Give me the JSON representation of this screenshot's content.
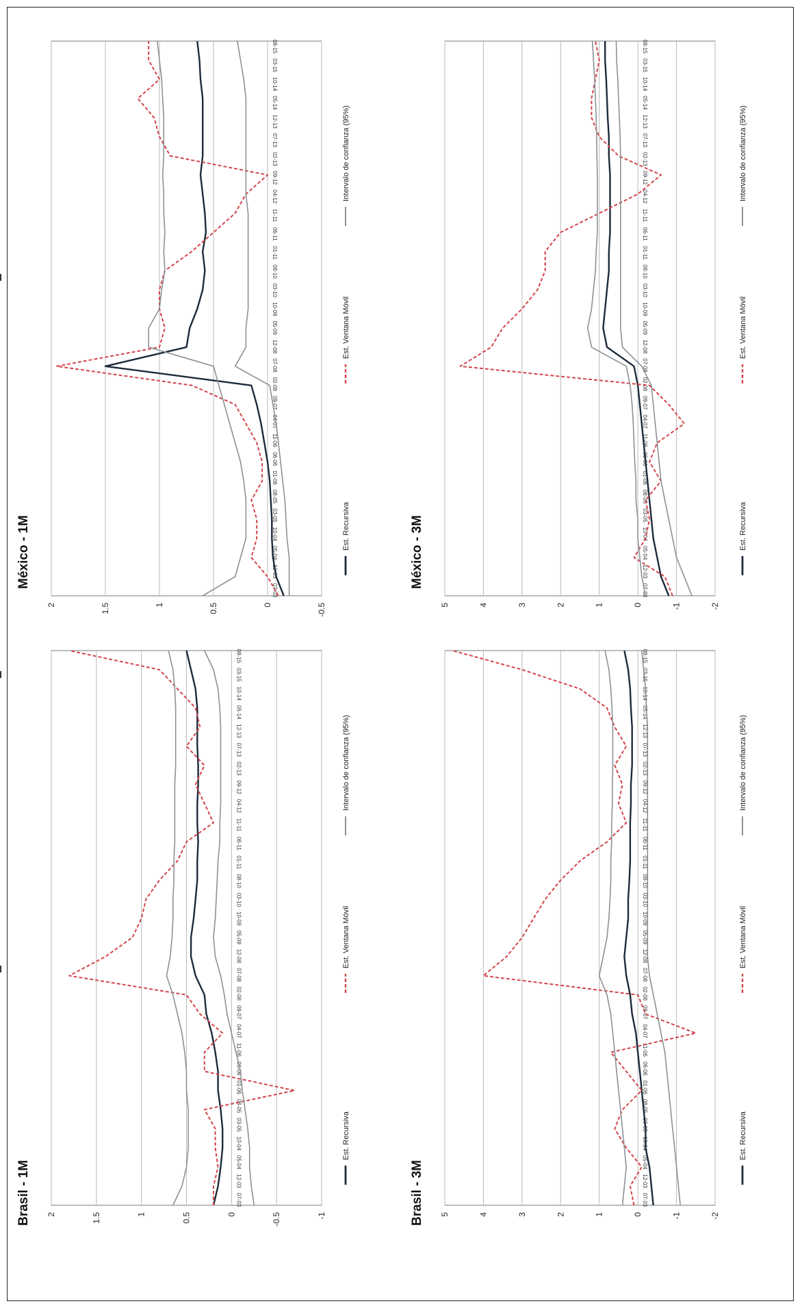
{
  "legend": {
    "recursive": "Est. Recursiva",
    "moving": "Est. Ventana Móvil",
    "interval": "Intervalo de confianza (95%)"
  },
  "colors": {
    "recursive": "#1c2a3a",
    "moving": "#d2454b",
    "interval": "#8a9196",
    "grid": "#b8b8b8"
  },
  "chart_data": [
    {
      "type": "line",
      "title": "Brasil - 1M",
      "ylim": [
        -1,
        2
      ],
      "yticks": [
        2,
        1.5,
        1,
        0.5,
        0,
        -0.5,
        -1
      ],
      "x_tick_labels": [
        "07-03",
        "12-03",
        "05-04",
        "10-04",
        "03-05",
        "08-05",
        "01-06",
        "06-06",
        "11-06",
        "04-07",
        "09-07",
        "02-08",
        "07-08",
        "12-08",
        "05-09",
        "10-09",
        "03-10",
        "08-10",
        "01-11",
        "06-11",
        "11-11",
        "04-12",
        "09-12",
        "02-13",
        "07-13",
        "12-13",
        "05-14",
        "10-14",
        "03-15",
        "08-15"
      ],
      "series": [
        {
          "name": "Est. Recursiva",
          "role": "recursive",
          "values": [
            0.2,
            0.15,
            0.12,
            0.1,
            0.1,
            0.12,
            0.15,
            0.15,
            0.18,
            0.22,
            0.28,
            0.3,
            0.4,
            0.45,
            0.45,
            0.42,
            0.4,
            0.38,
            0.38,
            0.37,
            0.38,
            0.38,
            0.37,
            0.37,
            0.38,
            0.38,
            0.38,
            0.4,
            0.45,
            0.5
          ]
        },
        {
          "name": "Est. Ventana Móvil",
          "role": "moving",
          "values": [
            0.2,
            0.2,
            0.15,
            0.18,
            0.18,
            0.3,
            -0.7,
            0.3,
            0.3,
            0.1,
            0.35,
            0.5,
            1.8,
            1.4,
            1.1,
            1.0,
            0.95,
            0.8,
            0.6,
            0.5,
            0.2,
            0.3,
            0.4,
            0.3,
            0.5,
            0.35,
            0.4,
            0.6,
            0.8,
            1.8
          ]
        },
        {
          "role": "interval_upper",
          "values": [
            0.65,
            0.55,
            0.5,
            0.48,
            0.48,
            0.48,
            0.5,
            0.5,
            0.52,
            0.55,
            0.6,
            0.65,
            0.72,
            0.68,
            0.66,
            0.65,
            0.65,
            0.64,
            0.64,
            0.63,
            0.63,
            0.63,
            0.63,
            0.62,
            0.62,
            0.62,
            0.62,
            0.63,
            0.65,
            0.7
          ]
        },
        {
          "role": "interval_lower",
          "values": [
            -0.25,
            -0.22,
            -0.2,
            -0.2,
            -0.18,
            -0.15,
            -0.12,
            -0.1,
            -0.05,
            0.0,
            0.05,
            0.08,
            0.12,
            0.18,
            0.2,
            0.18,
            0.17,
            0.16,
            0.15,
            0.13,
            0.13,
            0.12,
            0.12,
            0.12,
            0.12,
            0.12,
            0.13,
            0.15,
            0.2,
            0.3
          ]
        }
      ]
    },
    {
      "type": "line",
      "title": "México - 1M",
      "ylim": [
        -0.5,
        2
      ],
      "yticks": [
        2,
        1.5,
        1,
        0.5,
        0,
        -0.5
      ],
      "x_tick_labels": [
        "07-03",
        "12-03",
        "05-04",
        "10-04",
        "03-05",
        "08-05",
        "01-06",
        "06-06",
        "11-06",
        "04-07",
        "09-07",
        "02-08",
        "07-08",
        "12-08",
        "05-09",
        "10-09",
        "03-10",
        "08-10",
        "01-11",
        "06-11",
        "11-11",
        "04-12",
        "09-12",
        "02-13",
        "07-13",
        "12-13",
        "05-14",
        "10-14",
        "03-15",
        "08-15"
      ],
      "series": [
        {
          "name": "Est. Recursiva",
          "role": "recursive",
          "values": [
            -0.15,
            -0.08,
            -0.05,
            -0.04,
            -0.04,
            -0.03,
            -0.02,
            0.0,
            0.03,
            0.06,
            0.1,
            0.15,
            1.5,
            0.75,
            0.72,
            0.65,
            0.6,
            0.58,
            0.6,
            0.57,
            0.58,
            0.6,
            0.62,
            0.6,
            0.6,
            0.6,
            0.6,
            0.62,
            0.63,
            0.65
          ]
        },
        {
          "name": "Est. Ventana Móvil",
          "role": "moving",
          "values": [
            -0.1,
            0.0,
            0.15,
            0.1,
            0.1,
            0.15,
            0.05,
            0.05,
            0.1,
            0.2,
            0.3,
            0.7,
            1.95,
            1.0,
            0.95,
            1.0,
            1.0,
            0.95,
            0.7,
            0.5,
            0.3,
            0.2,
            0.0,
            0.9,
            1.0,
            1.05,
            1.2,
            1.0,
            1.1,
            1.1
          ]
        },
        {
          "role": "interval_upper",
          "values": [
            0.6,
            0.3,
            0.25,
            0.2,
            0.2,
            0.2,
            0.22,
            0.25,
            0.3,
            0.35,
            0.4,
            0.45,
            0.5,
            1.1,
            1.1,
            1.0,
            0.98,
            0.95,
            0.96,
            0.95,
            0.96,
            0.96,
            0.97,
            0.96,
            0.96,
            0.96,
            0.97,
            0.98,
            1.0,
            1.02
          ]
        },
        {
          "role": "interval_lower",
          "values": [
            -0.2,
            -0.2,
            -0.2,
            -0.18,
            -0.17,
            -0.16,
            -0.14,
            -0.12,
            -0.1,
            -0.08,
            -0.05,
            -0.02,
            0.3,
            0.2,
            0.2,
            0.18,
            0.18,
            0.18,
            0.18,
            0.18,
            0.18,
            0.2,
            0.2,
            0.2,
            0.2,
            0.2,
            0.2,
            0.22,
            0.25,
            0.28
          ]
        }
      ]
    },
    {
      "type": "line",
      "title": "Brasil - 3M",
      "ylim": [
        -2,
        5
      ],
      "yticks": [
        5,
        4,
        3,
        2,
        1,
        0,
        -1,
        -2
      ],
      "x_tick_labels": [
        "07-03",
        "12-03",
        "05-04",
        "10-04",
        "03-05",
        "08-05",
        "01-06",
        "06-06",
        "11-06",
        "04-07",
        "09-07",
        "02-08",
        "07-08",
        "12-08",
        "05-09",
        "10-09",
        "03-10",
        "08-10",
        "01-11",
        "06-11",
        "11-11",
        "04-12",
        "09-12",
        "02-13",
        "07-13",
        "12-13",
        "05-14",
        "10-14",
        "03-15",
        "08-15"
      ],
      "series": [
        {
          "name": "Est. Recursiva",
          "role": "recursive",
          "values": [
            -0.4,
            -0.35,
            -0.3,
            -0.2,
            -0.2,
            -0.15,
            -0.1,
            -0.05,
            0.0,
            0.05,
            0.15,
            0.2,
            0.3,
            0.35,
            0.3,
            0.25,
            0.25,
            0.22,
            0.2,
            0.2,
            0.2,
            0.18,
            0.18,
            0.15,
            0.15,
            0.15,
            0.18,
            0.2,
            0.25,
            0.35
          ]
        },
        {
          "name": "Est. Ventana Móvil",
          "role": "moving",
          "values": [
            0.1,
            0.2,
            -0.1,
            0.3,
            0.6,
            0.4,
            -0.1,
            0.3,
            0.7,
            -1.5,
            -0.2,
            0.0,
            4.0,
            3.4,
            3.0,
            2.7,
            2.4,
            2.0,
            1.5,
            0.8,
            0.3,
            0.5,
            0.4,
            0.6,
            0.3,
            0.6,
            0.8,
            1.5,
            3.0,
            4.8
          ]
        },
        {
          "role": "interval_upper",
          "values": [
            0.4,
            0.35,
            0.3,
            0.35,
            0.4,
            0.45,
            0.5,
            0.55,
            0.6,
            0.65,
            0.7,
            0.8,
            1.0,
            0.9,
            0.8,
            0.75,
            0.72,
            0.7,
            0.7,
            0.68,
            0.68,
            0.66,
            0.66,
            0.65,
            0.65,
            0.65,
            0.67,
            0.7,
            0.75,
            0.85
          ]
        },
        {
          "role": "interval_lower",
          "values": [
            -1.1,
            -1.05,
            -1.0,
            -0.95,
            -0.9,
            -0.85,
            -0.8,
            -0.75,
            -0.7,
            -0.6,
            -0.5,
            -0.4,
            -0.3,
            -0.25,
            -0.25,
            -0.25,
            -0.25,
            -0.25,
            -0.25,
            -0.25,
            -0.25,
            -0.25,
            -0.25,
            -0.25,
            -0.25,
            -0.25,
            -0.22,
            -0.2,
            -0.15,
            -0.1
          ]
        }
      ]
    },
    {
      "type": "line",
      "title": "México - 3M",
      "ylim": [
        -2,
        5
      ],
      "yticks": [
        5,
        4,
        3,
        2,
        1,
        0,
        -1,
        -2
      ],
      "x_tick_labels": [
        "07-03",
        "12-03",
        "05-04",
        "10-04",
        "03-05",
        "08-05",
        "01-06",
        "06-06",
        "11-06",
        "04-07",
        "09-07",
        "02-08",
        "07-08",
        "12-08",
        "05-09",
        "10-09",
        "03-10",
        "08-10",
        "01-11",
        "06-11",
        "11-11",
        "04-12",
        "09-12",
        "02-13",
        "07-13",
        "12-13",
        "05-14",
        "10-14",
        "03-15",
        "08-15"
      ],
      "series": [
        {
          "name": "Est. Recursiva",
          "role": "recursive",
          "values": [
            -0.8,
            -0.6,
            -0.5,
            -0.4,
            -0.35,
            -0.3,
            -0.25,
            -0.2,
            -0.15,
            -0.1,
            -0.05,
            0.0,
            0.1,
            0.8,
            0.9,
            0.85,
            0.8,
            0.75,
            0.75,
            0.72,
            0.72,
            0.72,
            0.72,
            0.75,
            0.75,
            0.78,
            0.8,
            0.82,
            0.85,
            0.85
          ]
        },
        {
          "name": "Est. Ventana Móvil",
          "role": "moving",
          "values": [
            -0.9,
            -0.7,
            0.1,
            -0.2,
            -0.3,
            -0.2,
            -0.6,
            -0.3,
            -0.5,
            -1.2,
            -0.8,
            -0.3,
            4.6,
            3.8,
            3.5,
            3.0,
            2.6,
            2.4,
            2.4,
            2.0,
            1.0,
            0.0,
            -0.6,
            0.5,
            1.0,
            1.2,
            1.2,
            1.1,
            1.0,
            1.1
          ]
        },
        {
          "role": "interval_upper",
          "values": [
            -0.2,
            -0.1,
            -0.05,
            0.0,
            0.0,
            0.05,
            0.05,
            0.08,
            0.1,
            0.12,
            0.15,
            0.2,
            0.3,
            1.2,
            1.3,
            1.2,
            1.15,
            1.1,
            1.08,
            1.05,
            1.05,
            1.05,
            1.05,
            1.06,
            1.07,
            1.08,
            1.1,
            1.12,
            1.15,
            1.18
          ]
        },
        {
          "role": "interval_lower",
          "values": [
            -1.4,
            -1.2,
            -1.0,
            -0.9,
            -0.8,
            -0.7,
            -0.6,
            -0.55,
            -0.5,
            -0.45,
            -0.4,
            -0.35,
            -0.1,
            0.4,
            0.45,
            0.45,
            0.45,
            0.45,
            0.45,
            0.45,
            0.45,
            0.45,
            0.45,
            0.45,
            0.46,
            0.48,
            0.5,
            0.52,
            0.55,
            0.56
          ]
        }
      ]
    }
  ]
}
